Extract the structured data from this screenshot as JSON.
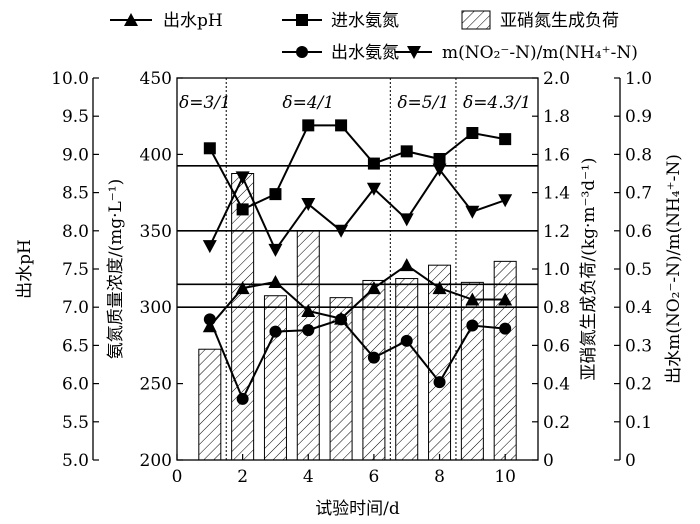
{
  "chart_data": {
    "type": "combo",
    "x": [
      1,
      2,
      3,
      4,
      5,
      6,
      7,
      8,
      9,
      10
    ],
    "xlabel": "试验时间/d",
    "xlim": [
      0,
      11
    ],
    "xticks": [
      0,
      2,
      4,
      6,
      8,
      10
    ],
    "axes": {
      "ph": {
        "label": "出水pH",
        "ylim": [
          5.0,
          10.0
        ],
        "ticks": [
          "5.0",
          "5.5",
          "6.0",
          "6.5",
          "7.0",
          "7.5",
          "8.0",
          "8.5",
          "9.0",
          "9.5",
          "10.0"
        ]
      },
      "ammonia": {
        "label": "氨氮质量浓度/(mg·L⁻¹)",
        "ylim": [
          200,
          450
        ],
        "ticks": [
          "200",
          "250",
          "300",
          "350",
          "400",
          "450"
        ]
      },
      "load": {
        "label": "亚硝氮生成负荷/(kg·m⁻³d⁻¹)",
        "ylim": [
          0,
          2.0
        ],
        "ticks": [
          "0",
          "0.2",
          "0.4",
          "0.6",
          "0.8",
          "1.0",
          "1.2",
          "1.4",
          "1.6",
          "1.8",
          "2.0"
        ]
      },
      "ratio": {
        "label": "出水m(NO₂⁻-N)/m(NH₄⁺-N)",
        "ylim": [
          0,
          1.0
        ],
        "ticks": [
          "0",
          "0.1",
          "0.2",
          "0.3",
          "0.4",
          "0.5",
          "0.6",
          "0.7",
          "0.8",
          "0.9",
          "1.0"
        ]
      }
    },
    "series": [
      {
        "name": "出水pH",
        "axis": "ph",
        "kind": "line",
        "marker": "triangle-up",
        "values": [
          6.75,
          7.25,
          7.33,
          6.95,
          6.85,
          7.25,
          7.55,
          7.25,
          7.1,
          7.1
        ]
      },
      {
        "name": "进水氨氮",
        "axis": "ammonia",
        "kind": "line",
        "marker": "square",
        "values": [
          404,
          364,
          374,
          419,
          419,
          394,
          402,
          397,
          414,
          410
        ]
      },
      {
        "name": "亚硝氮生成负荷",
        "axis": "load",
        "kind": "bar",
        "pattern": "hatch",
        "values": [
          0.58,
          1.5,
          0.86,
          1.2,
          0.85,
          0.94,
          0.95,
          1.02,
          0.93,
          1.04
        ]
      },
      {
        "name": "出水氨氮",
        "axis": "ammonia",
        "kind": "line",
        "marker": "circle",
        "values": [
          292,
          240,
          284,
          285,
          292,
          267,
          278,
          251,
          288,
          286
        ]
      },
      {
        "name": "m(NO₂⁻-N)/m(NH₄⁺-N)",
        "axis": "ratio",
        "kind": "line",
        "marker": "triangle-down",
        "values": [
          0.56,
          0.74,
          0.55,
          0.67,
          0.6,
          0.71,
          0.63,
          0.76,
          0.65,
          0.68
        ]
      }
    ],
    "phases": [
      {
        "label": "δ=3/1",
        "from": 0,
        "to": 1.5
      },
      {
        "label": "δ=4/1",
        "from": 1.5,
        "to": 6.5
      },
      {
        "label": "δ=5/1",
        "from": 6.5,
        "to": 8.5
      },
      {
        "label": "δ=4.3/1",
        "from": 8.5,
        "to": 11
      }
    ],
    "reference_lines_ph": [
      8.85,
      8.0,
      7.3,
      7.0
    ],
    "legend_position": "top",
    "grid": false
  }
}
